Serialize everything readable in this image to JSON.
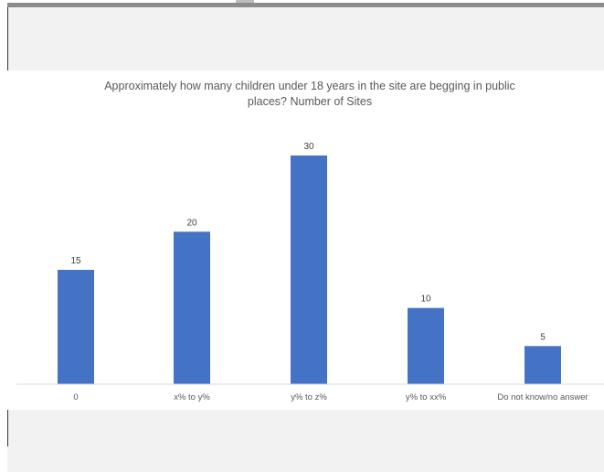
{
  "chart_data": {
    "type": "bar",
    "title": "Approximately how many children under 18 years in the site are begging in public places? Number of Sites",
    "title_lines": [
      "Approximately how many children under 18 years in the site are begging in public",
      "places? Number of Sites"
    ],
    "categories": [
      "0",
      "x% to y%",
      "y% to z%",
      "y% to xx%",
      "Do not know/no answer"
    ],
    "values": [
      15,
      20,
      30,
      10,
      5
    ],
    "ylim": [
      0,
      30
    ],
    "bar_color": "#4472c4",
    "grid": false,
    "legend": "none",
    "data_labels": true
  }
}
